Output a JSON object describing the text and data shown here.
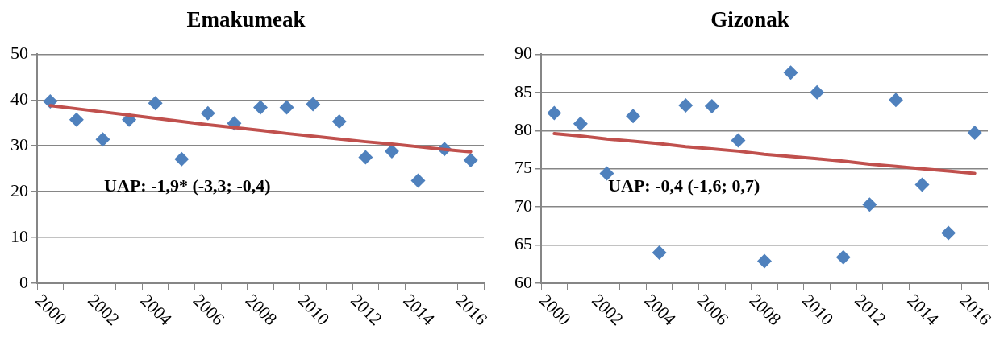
{
  "chart_data": [
    {
      "type": "scatter",
      "title": "Emakumeak",
      "categories": [
        "2000",
        null,
        "2002",
        null,
        "2004",
        null,
        "2006",
        null,
        "2008",
        null,
        "2010",
        null,
        "2012",
        null,
        "2014",
        null,
        "2016"
      ],
      "series": [
        {
          "color": "#4f81bd",
          "marker": "diamond",
          "values": [
            39.7,
            35.7,
            31.4,
            35.7,
            39.3,
            27.1,
            37.1,
            34.9,
            38.4,
            38.4,
            39.1,
            35.3,
            27.5,
            28.8,
            22.4,
            29.3,
            26.9
          ]
        },
        {
          "type": "line",
          "color": "#c0504d",
          "marker": "none",
          "values": [
            38.8,
            38.1,
            37.4,
            36.7,
            36.0,
            35.3,
            34.6,
            34.0,
            33.4,
            32.7,
            32.1,
            31.5,
            30.9,
            30.4,
            29.8,
            29.2,
            28.7
          ]
        }
      ],
      "ylim": [
        0,
        50
      ],
      "yticks": [
        0,
        10,
        20,
        30,
        40,
        50
      ],
      "grid": "y",
      "legend": false,
      "annotations": [
        "UAP: -1,9* (-3,3; -0,4)"
      ]
    },
    {
      "type": "scatter",
      "title": "Gizonak",
      "categories": [
        "2000",
        null,
        "2002",
        null,
        "2004",
        null,
        "2006",
        null,
        "2008",
        null,
        "2010",
        null,
        "2012",
        null,
        "2014",
        null,
        "2016"
      ],
      "series": [
        {
          "color": "#4f81bd",
          "marker": "diamond",
          "values": [
            82.3,
            80.9,
            74.4,
            81.9,
            64.0,
            83.3,
            83.2,
            78.7,
            62.9,
            87.6,
            85.0,
            63.4,
            70.3,
            84.0,
            72.9,
            66.6,
            79.7
          ]
        },
        {
          "type": "line",
          "color": "#c0504d",
          "marker": "none",
          "values": [
            79.6,
            79.3,
            78.9,
            78.6,
            78.3,
            77.9,
            77.6,
            77.3,
            76.9,
            76.6,
            76.3,
            76.0,
            75.6,
            75.3,
            75.0,
            74.7,
            74.4
          ]
        }
      ],
      "ylim": [
        60,
        90
      ],
      "yticks": [
        60,
        65,
        70,
        75,
        80,
        85,
        90
      ],
      "grid": "y",
      "legend": false,
      "annotations": [
        "UAP: -0,4 (-1,6; 0,7)"
      ]
    }
  ]
}
